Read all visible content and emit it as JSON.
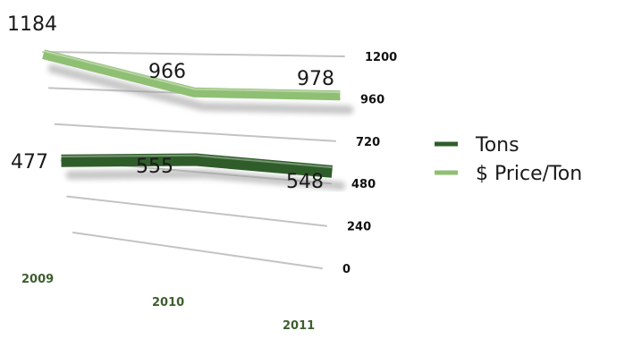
{
  "chart_data": {
    "type": "line",
    "title": "",
    "xlabel": "",
    "ylabel": "",
    "categories": [
      "2009",
      "2010",
      "2011"
    ],
    "ylim": [
      0,
      1200
    ],
    "yticks": [
      "0",
      "240",
      "480",
      "720",
      "960",
      "1200"
    ],
    "grid": true,
    "legend_position": "right",
    "series": [
      {
        "name": "Tons",
        "values": [
          477,
          555,
          548
        ],
        "labels": [
          "477",
          "555",
          "548"
        ],
        "color": "#2f5d2a"
      },
      {
        "name": "$ Price/Ton",
        "values": [
          1184,
          966,
          978
        ],
        "labels": [
          "1184",
          "966",
          "978"
        ],
        "color": "#8fbf73"
      }
    ]
  }
}
